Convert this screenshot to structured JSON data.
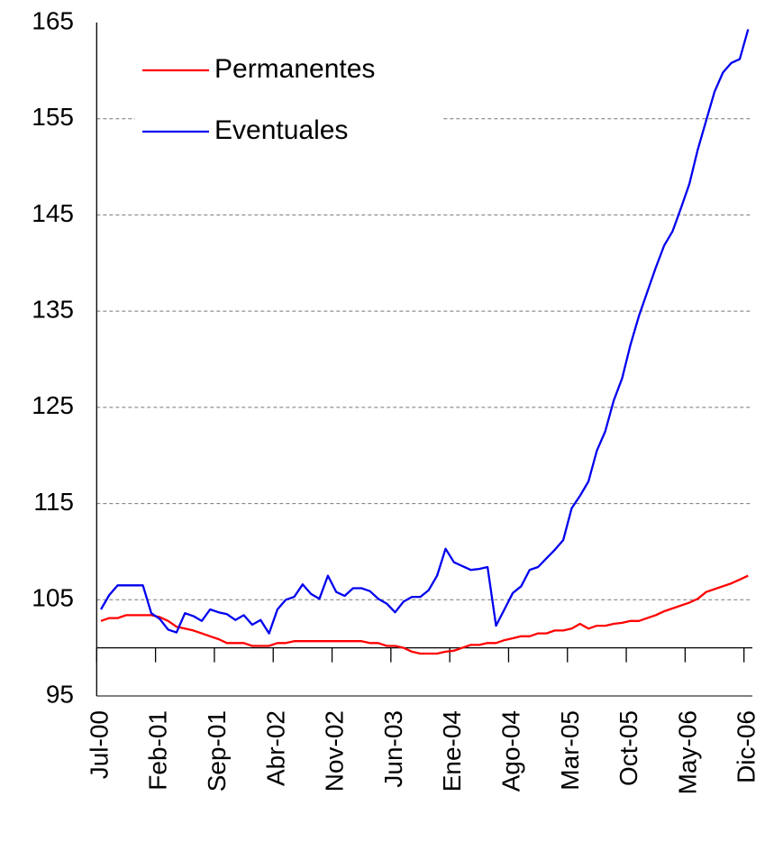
{
  "chart_data": {
    "type": "line",
    "categories": [
      "Jul-00",
      null,
      null,
      null,
      null,
      null,
      null,
      "Feb-01",
      null,
      null,
      null,
      null,
      null,
      null,
      "Sep-01",
      null,
      null,
      null,
      null,
      null,
      null,
      "Abr-02",
      null,
      null,
      null,
      null,
      null,
      null,
      "Nov-02",
      null,
      null,
      null,
      null,
      null,
      null,
      "Jun-03",
      null,
      null,
      null,
      null,
      null,
      null,
      "Ene-04",
      null,
      null,
      null,
      null,
      null,
      null,
      "Ago-04",
      null,
      null,
      null,
      null,
      null,
      null,
      "Mar-05",
      null,
      null,
      null,
      null,
      null,
      null,
      "Oct-05",
      null,
      null,
      null,
      null,
      null,
      null,
      "May-06",
      null,
      null,
      null,
      null,
      null,
      null,
      "Dic-06"
    ],
    "series": [
      {
        "name": "Permanentes",
        "color": "#ff0000",
        "values": [
          102.8,
          103.1,
          103.1,
          103.4,
          103.4,
          103.4,
          103.4,
          103.2,
          102.8,
          102.2,
          102.0,
          101.8,
          101.5,
          101.2,
          100.9,
          100.5,
          100.5,
          100.5,
          100.2,
          100.2,
          100.2,
          100.5,
          100.5,
          100.7,
          100.7,
          100.7,
          100.7,
          100.7,
          100.7,
          100.7,
          100.7,
          100.7,
          100.5,
          100.5,
          100.2,
          100.2,
          100.0,
          99.6,
          99.4,
          99.4,
          99.4,
          99.6,
          99.7,
          100.0,
          100.3,
          100.3,
          100.5,
          100.5,
          100.8,
          101.0,
          101.2,
          101.2,
          101.5,
          101.5,
          101.8,
          101.8,
          102.0,
          102.5,
          102.0,
          102.3,
          102.3,
          102.5,
          102.6,
          102.8,
          102.8,
          103.1,
          103.4,
          103.8,
          104.1,
          104.4,
          104.7,
          105.1,
          105.8,
          106.1,
          106.4,
          106.7,
          107.1,
          107.5
        ]
      },
      {
        "name": "Eventuales",
        "color": "#0000ee",
        "values": [
          104.0,
          105.5,
          106.5,
          106.5,
          106.5,
          106.5,
          103.6,
          103.0,
          101.9,
          101.6,
          103.6,
          103.3,
          102.8,
          104.0,
          103.7,
          103.5,
          102.9,
          103.4,
          102.4,
          102.9,
          101.5,
          104.0,
          105.0,
          105.3,
          106.6,
          105.6,
          105.1,
          107.5,
          105.8,
          105.4,
          106.2,
          106.2,
          105.9,
          105.1,
          104.6,
          103.7,
          104.8,
          105.3,
          105.3,
          106.0,
          107.5,
          110.3,
          108.9,
          108.5,
          108.1,
          108.2,
          108.4,
          102.3,
          104.0,
          105.7,
          106.4,
          108.1,
          108.4,
          109.3,
          110.2,
          111.2,
          114.5,
          115.8,
          117.3,
          120.5,
          122.5,
          125.7,
          128.0,
          131.5,
          134.5,
          137.0,
          139.5,
          141.8,
          143.3,
          145.7,
          148.2,
          151.8,
          154.8,
          157.8,
          159.8,
          160.8,
          161.2,
          164.3
        ]
      }
    ],
    "ylim": [
      95,
      165
    ],
    "yticks": [
      95,
      105,
      115,
      125,
      135,
      145,
      155,
      165
    ],
    "xaxis_crosses": 100,
    "grid": true,
    "legend": "upper left"
  }
}
